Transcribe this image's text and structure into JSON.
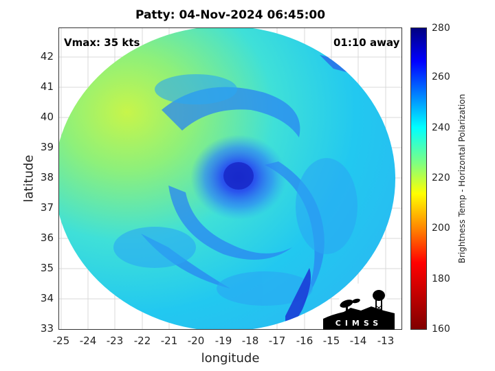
{
  "title": "Patty: 04-Nov-2024 06:45:00",
  "vmax_label": "Vmax: 35 kts",
  "time_away_label": "01:10 away",
  "x_axis": {
    "label": "longitude",
    "ticks": [
      "-25",
      "-24",
      "-23",
      "-22",
      "-21",
      "-20",
      "-19",
      "-18",
      "-17",
      "-16",
      "-15",
      "-14",
      "-13"
    ],
    "range": [
      -25.1,
      -12.4
    ]
  },
  "y_axis": {
    "label": "latitude",
    "ticks": [
      "33",
      "34",
      "35",
      "36",
      "37",
      "38",
      "39",
      "40",
      "41",
      "42"
    ],
    "range": [
      33,
      43
    ]
  },
  "colorbar": {
    "label": "Brightness Temp - Horizontal Polarization",
    "ticks": [
      "160",
      "180",
      "200",
      "220",
      "240",
      "260",
      "280"
    ],
    "range": [
      160,
      280
    ],
    "colors": [
      "#800000",
      "#ff0000",
      "#ff8000",
      "#ffff00",
      "#80ff80",
      "#00ffff",
      "#0080ff",
      "#0000ff",
      "#000080"
    ]
  },
  "storm_center": {
    "lon": -18.4,
    "lat": 38.0
  },
  "logo_text": "CIMSS"
}
